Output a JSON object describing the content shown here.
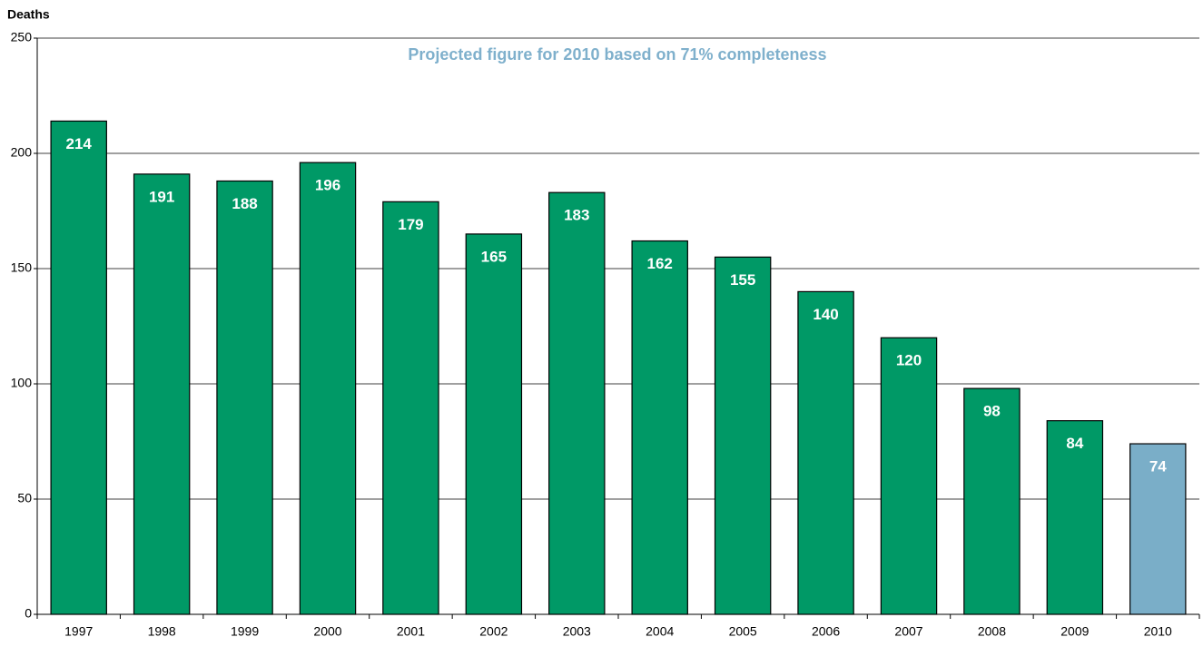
{
  "chart_data": {
    "type": "bar",
    "y_axis_label": "Deaths",
    "annotation": "Projected figure for 2010 based on 71% completeness",
    "annotation_color": "#7fb0cc",
    "categories": [
      "1997",
      "1998",
      "1999",
      "2000",
      "2001",
      "2002",
      "2003",
      "2004",
      "2005",
      "2006",
      "2007",
      "2008",
      "2009",
      "2010"
    ],
    "values": [
      214,
      191,
      188,
      196,
      179,
      165,
      183,
      162,
      155,
      140,
      120,
      98,
      84,
      74
    ],
    "colors": [
      "#009966",
      "#009966",
      "#009966",
      "#009966",
      "#009966",
      "#009966",
      "#009966",
      "#009966",
      "#009966",
      "#009966",
      "#009966",
      "#009966",
      "#009966",
      "#7aaec8"
    ],
    "ylim": [
      0,
      250
    ],
    "yticks": [
      0,
      50,
      100,
      150,
      200,
      250
    ],
    "grid": true
  }
}
